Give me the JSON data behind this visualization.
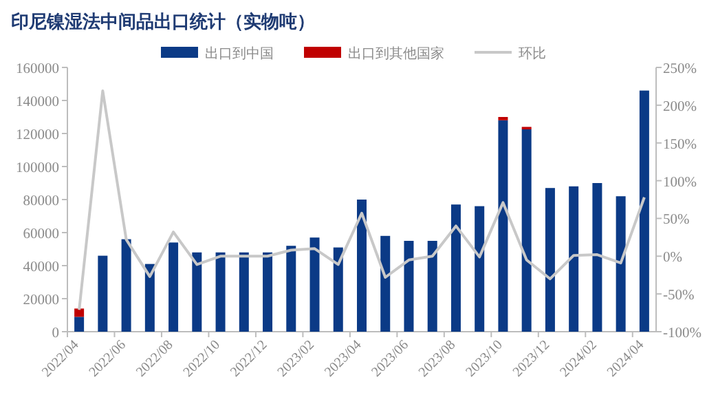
{
  "chart_data": {
    "type": "bar",
    "title": "印尼镍湿法中间品出口统计（实物吨）",
    "categories": [
      "2022/04",
      null,
      "2022/06",
      null,
      "2022/08",
      null,
      "2022/10",
      null,
      "2022/12",
      null,
      "2023/02",
      null,
      "2023/04",
      null,
      "2023/06",
      null,
      "2023/08",
      null,
      "2023/10",
      null,
      "2023/12",
      null,
      "2024/02",
      null,
      "2024/04"
    ],
    "series": [
      {
        "name": "出口到中国",
        "color": "#0b3a86",
        "values": [
          9000,
          46000,
          56000,
          41000,
          54000,
          48000,
          48000,
          48000,
          48000,
          52000,
          57000,
          51000,
          80000,
          58000,
          55000,
          55000,
          77000,
          76000,
          128000,
          122500,
          87000,
          88000,
          90000,
          82000,
          146000
        ]
      },
      {
        "name": "出口到其他国家",
        "color": "#c00000",
        "values": [
          5000,
          0,
          0,
          0,
          0,
          0,
          0,
          0,
          0,
          0,
          0,
          0,
          0,
          0,
          0,
          0,
          0,
          0,
          2000,
          1500,
          0,
          0,
          0,
          0,
          0
        ]
      },
      {
        "name": "环比",
        "type": "line",
        "axis": "y2",
        "color": "#c8c8c8",
        "values": [
          -71,
          219,
          22,
          -27,
          32,
          -11,
          0,
          0,
          0,
          8,
          10,
          -11,
          57,
          -28,
          -5,
          0,
          40,
          -1,
          71,
          -5,
          -30,
          1,
          2,
          -9,
          78
        ]
      }
    ],
    "stacked": true,
    "legend": "top",
    "ylim": [
      0,
      160000
    ],
    "yticks": [
      0,
      20000,
      40000,
      60000,
      80000,
      100000,
      120000,
      140000,
      160000
    ],
    "y2lim": [
      -100,
      250
    ],
    "y2ticks": [
      {
        "value": -100,
        "label": "-100%"
      },
      {
        "value": -50,
        "label": "-50%"
      },
      {
        "value": 0,
        "label": "0%"
      },
      {
        "value": 50,
        "label": "50%"
      },
      {
        "value": 100,
        "label": "100%"
      },
      {
        "value": 150,
        "label": "150%"
      },
      {
        "value": 200,
        "label": "200%"
      },
      {
        "value": 250,
        "label": "250%"
      }
    ]
  }
}
